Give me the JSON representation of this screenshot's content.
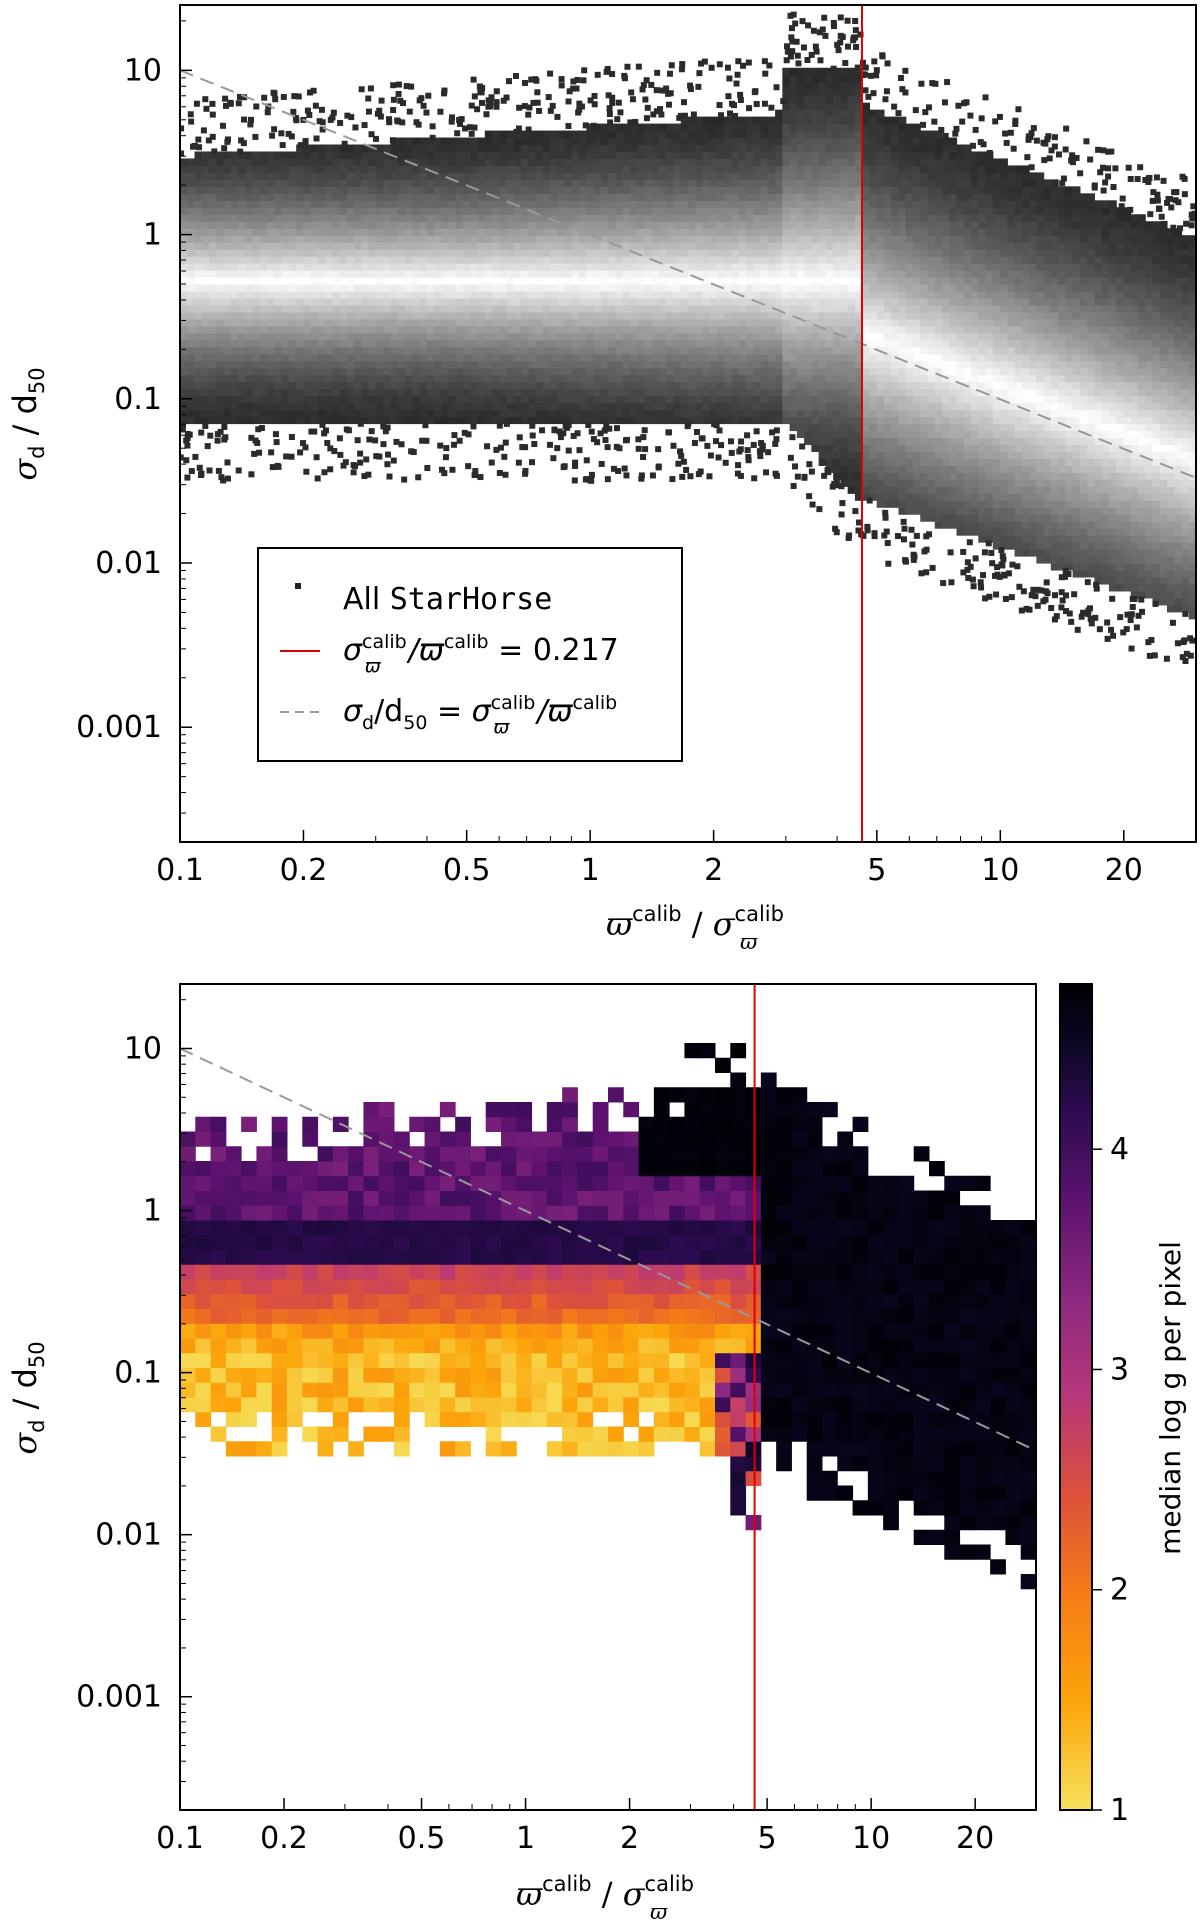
{
  "chart_data": [
    {
      "type": "heatmap",
      "panel": "top",
      "xscale": "log",
      "yscale": "log",
      "xlim": [
        0.1,
        30
      ],
      "ylim": [
        0.0002,
        25
      ],
      "xlabel": "ϖ^calib / σ_ϖ^calib",
      "xlabel_parts": {
        "a": "ϖ",
        "a_sup": "calib",
        "sep": " / ",
        "b": "σ",
        "b_sub": "ϖ",
        "b_sup": "calib"
      },
      "ylabel": "σ_d / d_50",
      "ylabel_parts": {
        "a": "σ",
        "a_sub": "d",
        "sep": " / ",
        "b": "d",
        "b_sub": "50"
      },
      "x_ticks": [
        {
          "value": 0.1,
          "label": "0.1"
        },
        {
          "value": 0.2,
          "label": "0.2"
        },
        {
          "value": 0.5,
          "label": "0.5"
        },
        {
          "value": 1,
          "label": "1"
        },
        {
          "value": 2,
          "label": "2"
        },
        {
          "value": 5,
          "label": "5"
        },
        {
          "value": 10,
          "label": "10"
        },
        {
          "value": 20,
          "label": "20"
        }
      ],
      "y_ticks": [
        {
          "value": 10,
          "label": "10"
        },
        {
          "value": 1,
          "label": "1"
        },
        {
          "value": 0.1,
          "label": "0.1"
        },
        {
          "value": 0.01,
          "label": "0.01"
        },
        {
          "value": 0.001,
          "label": "0.001"
        }
      ],
      "vline_x": 4.6,
      "dashed_line": [
        {
          "x": 0.1,
          "y": 10
        },
        {
          "x": 30,
          "y": 0.033
        }
      ],
      "legend": {
        "position": "lower-left",
        "entries": [
          {
            "marker": "square",
            "label_plain": "All ",
            "label_mono": "StarHorse"
          },
          {
            "marker": "red-line",
            "label": "σ_ϖ^calib/ϖ^calib = 0.217",
            "parts": {
              "a": "σ",
              "a_sub": "ϖ",
              "a_sup": "calib",
              "mid": "/ϖ",
              "b_sup": "calib",
              "rest": " = 0.217"
            }
          },
          {
            "marker": "dashed-line",
            "label": "σ_d/d_50 = σ_ϖ^calib/ϖ^calib",
            "parts": {
              "a": "σ",
              "a_sub": "d",
              "mid1": "/d",
              "mid1_sub": "50",
              "eq": " = σ",
              "eq_sub": "ϖ",
              "eq_sup": "calib",
              "mid2": "/ϖ",
              "end_sup": "calib"
            }
          }
        ]
      },
      "density_description_colors": {
        "low": "#2b2b2b",
        "high": "#ffffff"
      }
    },
    {
      "type": "heatmap",
      "panel": "bottom",
      "xscale": "log",
      "yscale": "log",
      "xlim": [
        0.1,
        30
      ],
      "ylim": [
        0.0002,
        25
      ],
      "xlabel": "ϖ^calib / σ_ϖ^calib",
      "ylabel": "σ_d / d_50",
      "x_ticks": [
        {
          "value": 0.1,
          "label": "0.1"
        },
        {
          "value": 0.2,
          "label": "0.2"
        },
        {
          "value": 0.5,
          "label": "0.5"
        },
        {
          "value": 1,
          "label": "1"
        },
        {
          "value": 2,
          "label": "2"
        },
        {
          "value": 5,
          "label": "5"
        },
        {
          "value": 10,
          "label": "10"
        },
        {
          "value": 20,
          "label": "20"
        }
      ],
      "y_ticks": [
        {
          "value": 10,
          "label": "10"
        },
        {
          "value": 1,
          "label": "1"
        },
        {
          "value": 0.1,
          "label": "0.1"
        },
        {
          "value": 0.01,
          "label": "0.01"
        },
        {
          "value": 0.001,
          "label": "0.001"
        }
      ],
      "vline_x": 4.6,
      "dashed_line": [
        {
          "x": 0.1,
          "y": 10
        },
        {
          "x": 30,
          "y": 0.033
        }
      ],
      "colorbar": {
        "label": "median log g per pixel",
        "range": [
          1,
          4.75
        ],
        "ticks": [
          {
            "value": 1,
            "label": "1"
          },
          {
            "value": 2,
            "label": "2"
          },
          {
            "value": 3,
            "label": "3"
          },
          {
            "value": 4,
            "label": "4"
          }
        ],
        "colormap": "inferno_r",
        "stops": [
          "#f6e15c",
          "#fca50a",
          "#f57d15",
          "#dd513a",
          "#b73779",
          "#8c2981",
          "#5c126e",
          "#2c0b4f",
          "#0a0722",
          "#000004"
        ]
      }
    }
  ],
  "colors": {
    "vline": "#e00000",
    "dashed": "#999999",
    "frame": "#000000"
  }
}
